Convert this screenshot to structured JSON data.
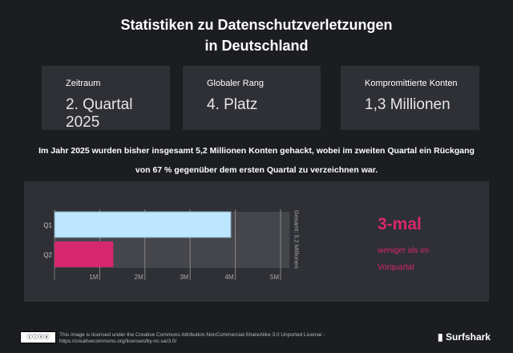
{
  "title": "Statistiken zu Datenschutzverletzungen in Deutschland",
  "cards": [
    {
      "label": "Zeitraum",
      "value": "2. Quartal 2025"
    },
    {
      "label": "Globaler Rang",
      "value": "4. Platz"
    },
    {
      "label": "Kompromittierte Konten",
      "value": "1,3 Millionen"
    }
  ],
  "description": "Im Jahr 2025 wurden bisher insgesamt 5,2 Millionen Konten gehackt, wobei im zweiten Quartal ein Rückgang von 67 % gegenüber dem ersten Quartal zu verzeichnen war.",
  "chart_data": {
    "type": "bar",
    "orientation": "horizontal",
    "categories": [
      "Q1",
      "Q2"
    ],
    "values": [
      3.9,
      1.3
    ],
    "unit": "M",
    "colors": [
      "#bde6ff",
      "#d6276f"
    ],
    "background_bar": 5.2,
    "total_label": "Gesamt: 5,2 Millionen",
    "xticks": [
      "1M",
      "2M",
      "3M",
      "4M",
      "5M"
    ],
    "xlim": [
      0,
      5.2
    ],
    "grid": true
  },
  "highlight": {
    "value": "3-mal",
    "text": "weniger als im Vorquartal",
    "color": "#d6276f"
  },
  "footer": {
    "license": "This image is licensed under the Creative Commons Attribution-NonCommercial-ShareAlike 3.0 Unported License -",
    "url": "https://creativecommons.org/licenses/by-nc-sa/3.0/",
    "cc_badge": "cc by nc sa",
    "brand": "Surfshark"
  }
}
